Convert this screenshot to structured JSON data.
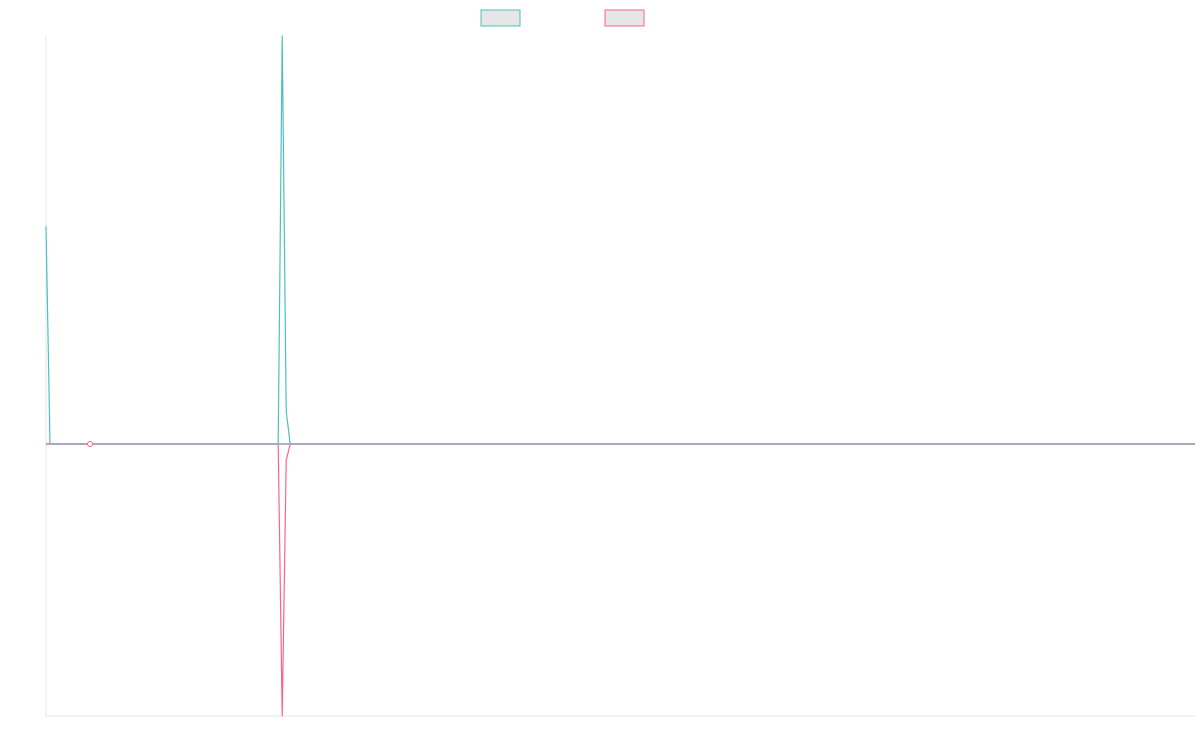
{
  "chart_data": {
    "type": "line",
    "title": "",
    "xlabel": "",
    "ylabel": "",
    "x": [
      0,
      1,
      2,
      3,
      4,
      5,
      6,
      7,
      8,
      9,
      10,
      11,
      12,
      13,
      14,
      15,
      16,
      17,
      18,
      19,
      20,
      21,
      22,
      23,
      24,
      25,
      26,
      27,
      28,
      29,
      30,
      31,
      32,
      33,
      34,
      35,
      36,
      37,
      38,
      39,
      40,
      41,
      42,
      43,
      44,
      45,
      46,
      47,
      48,
      49,
      50,
      51,
      52,
      53,
      54,
      55,
      56,
      57,
      58,
      59,
      60,
      61,
      62,
      63,
      64,
      65,
      66,
      67,
      68,
      69,
      70,
      71,
      72,
      73,
      74,
      75,
      76,
      77,
      78,
      79,
      80,
      81,
      82,
      83,
      84,
      85,
      86,
      87,
      88,
      89,
      90,
      91,
      92,
      93,
      94,
      95,
      96,
      97,
      98,
      99,
      100,
      101,
      102,
      103,
      104,
      105,
      106,
      107,
      108,
      109,
      110,
      111,
      112,
      113,
      114,
      115,
      116,
      117,
      118,
      119,
      120,
      121,
      122,
      123,
      124,
      125,
      126,
      127,
      128,
      129,
      130,
      131,
      132,
      133,
      134,
      135,
      136,
      137,
      138,
      139,
      140,
      141,
      142,
      143,
      144,
      145,
      146,
      147,
      148,
      149,
      150,
      151,
      152,
      153,
      154,
      155,
      156,
      157,
      158,
      159,
      160,
      161,
      162,
      163,
      164,
      165,
      166,
      167,
      168,
      169,
      170,
      171,
      172,
      173,
      174,
      175,
      176,
      177,
      178,
      179,
      180,
      181,
      182,
      183,
      184,
      185,
      186,
      187,
      188,
      189,
      190,
      191,
      192,
      193,
      194,
      195,
      196,
      197,
      198,
      199,
      200,
      201,
      202,
      203,
      204,
      205,
      206,
      207,
      208,
      209,
      210,
      211,
      212,
      213,
      214,
      215,
      216,
      217,
      218,
      219,
      220,
      221,
      222,
      223,
      224,
      225,
      226,
      227,
      228,
      229,
      230,
      231,
      232,
      233,
      234,
      235,
      236,
      237,
      238,
      239,
      240,
      241,
      242,
      243,
      244,
      245,
      246,
      247,
      248,
      249,
      250,
      251,
      252,
      253,
      254,
      255,
      256,
      257,
      258,
      259,
      260,
      261,
      262,
      263,
      264,
      265,
      266,
      267,
      268,
      269,
      270,
      271,
      272,
      273,
      274,
      275,
      276,
      277,
      278,
      279,
      280,
      281,
      282,
      283,
      284,
      285,
      286,
      287
    ],
    "ylim": [
      -100,
      150
    ],
    "grid": false,
    "legend_position": "top-center",
    "series": [
      {
        "color": "#4bc0c0",
        "values": [
          80,
          0,
          0,
          0,
          0,
          0,
          0,
          0,
          0,
          0,
          0,
          0,
          0,
          0,
          0,
          0,
          0,
          0,
          0,
          0,
          0,
          0,
          0,
          0,
          0,
          0,
          0,
          0,
          0,
          0,
          0,
          0,
          0,
          0,
          0,
          0,
          0,
          0,
          0,
          0,
          0,
          0,
          0,
          0,
          0,
          0,
          0,
          0,
          0,
          0,
          0,
          0,
          0,
          0,
          0,
          0,
          0,
          0,
          0,
          150,
          12,
          0,
          0,
          0,
          0,
          0,
          0,
          0,
          0,
          0,
          0,
          0,
          0,
          0,
          0,
          0,
          0,
          0,
          0,
          0,
          0,
          0,
          0,
          0,
          0,
          0,
          0,
          0,
          0,
          0,
          0,
          0,
          0,
          0,
          0,
          0,
          0,
          0,
          0,
          0,
          0,
          0,
          0,
          0,
          0,
          0,
          0,
          0,
          0,
          0,
          0,
          0,
          0,
          0,
          0,
          0,
          0,
          0,
          0,
          0,
          0,
          0,
          0,
          0,
          0,
          0,
          0,
          0,
          0,
          0,
          0,
          0,
          0,
          0,
          0,
          0,
          0,
          0,
          0,
          0,
          0,
          0,
          0,
          0,
          0,
          0,
          0,
          0,
          0,
          0,
          0,
          0,
          0,
          0,
          0,
          0,
          0,
          0,
          0,
          0,
          0,
          0,
          0,
          0,
          0,
          0,
          0,
          0,
          0,
          0,
          0,
          0,
          0,
          0,
          0,
          0,
          0,
          0,
          0,
          0,
          0,
          0,
          0,
          0,
          0,
          0,
          0,
          0,
          0,
          0,
          0,
          0,
          0,
          0,
          0,
          0,
          0,
          0,
          0,
          0,
          0,
          0,
          0,
          0,
          0,
          0,
          0,
          0,
          0,
          0,
          0,
          0,
          0,
          0,
          0,
          0,
          0,
          0,
          0,
          0,
          0,
          0,
          0,
          0,
          0,
          0,
          0,
          0,
          0,
          0,
          0,
          0,
          0,
          0,
          0,
          0,
          0,
          0,
          0,
          0,
          0,
          0,
          0,
          0,
          0,
          0,
          0,
          0,
          0,
          0,
          0,
          0,
          0,
          0,
          0,
          0,
          0,
          0,
          0,
          0,
          0,
          0,
          0,
          0,
          0,
          0,
          0,
          0,
          0,
          0,
          0,
          0,
          0,
          0,
          0,
          0,
          0,
          0,
          0,
          0,
          0,
          0,
          0,
          0,
          0,
          0,
          0,
          0
        ]
      },
      {
        "color": "#ff6384",
        "values": [
          0,
          0,
          0,
          0,
          0,
          0,
          0,
          0,
          0,
          0,
          0,
          0,
          0,
          0,
          0,
          0,
          0,
          0,
          0,
          0,
          0,
          0,
          0,
          0,
          0,
          0,
          0,
          0,
          0,
          0,
          0,
          0,
          0,
          0,
          0,
          0,
          0,
          0,
          0,
          0,
          0,
          0,
          0,
          0,
          0,
          0,
          0,
          0,
          0,
          0,
          0,
          0,
          0,
          0,
          0,
          0,
          0,
          0,
          0,
          -100,
          -6,
          0,
          0,
          0,
          0,
          0,
          0,
          0,
          0,
          0,
          0,
          0,
          0,
          0,
          0,
          0,
          0,
          0,
          0,
          0,
          0,
          0,
          0,
          0,
          0,
          0,
          0,
          0,
          0,
          0,
          0,
          0,
          0,
          0,
          0,
          0,
          0,
          0,
          0,
          0,
          0,
          0,
          0,
          0,
          0,
          0,
          0,
          0,
          0,
          0,
          0,
          0,
          0,
          0,
          0,
          0,
          0,
          0,
          0,
          0,
          0,
          0,
          0,
          0,
          0,
          0,
          0,
          0,
          0,
          0,
          0,
          0,
          0,
          0,
          0,
          0,
          0,
          0,
          0,
          0,
          0,
          0,
          0,
          0,
          0,
          0,
          0,
          0,
          0,
          0,
          0,
          0,
          0,
          0,
          0,
          0,
          0,
          0,
          0,
          0,
          0,
          0,
          0,
          0,
          0,
          0,
          0,
          0,
          0,
          0,
          0,
          0,
          0,
          0,
          0,
          0,
          0,
          0,
          0,
          0,
          0,
          0,
          0,
          0,
          0,
          0,
          0,
          0,
          0,
          0,
          0,
          0,
          0,
          0,
          0,
          0,
          0,
          0,
          0,
          0,
          0,
          0,
          0,
          0,
          0,
          0,
          0,
          0,
          0,
          0,
          0,
          0,
          0,
          0,
          0,
          0,
          0,
          0,
          0,
          0,
          0,
          0,
          0,
          0,
          0,
          0,
          0,
          0,
          0,
          0,
          0,
          0,
          0,
          0,
          0,
          0,
          0,
          0,
          0,
          0,
          0,
          0,
          0,
          0,
          0,
          0,
          0,
          0,
          0,
          0,
          0,
          0,
          0,
          0,
          0,
          0,
          0,
          0,
          0,
          0,
          0,
          0,
          0,
          0,
          0,
          0,
          0,
          0,
          0,
          0,
          0,
          0,
          0,
          0,
          0,
          0,
          0,
          0,
          0,
          0,
          0,
          0,
          0,
          0,
          0,
          0,
          0,
          0
        ]
      }
    ],
    "marker": {
      "x": 11,
      "y": 0,
      "color": "#ff6384"
    },
    "zero_line_color": "#9aa7c7",
    "axis_color": "#e5e5e5",
    "legend_box_fill": "#e6e6e6"
  }
}
